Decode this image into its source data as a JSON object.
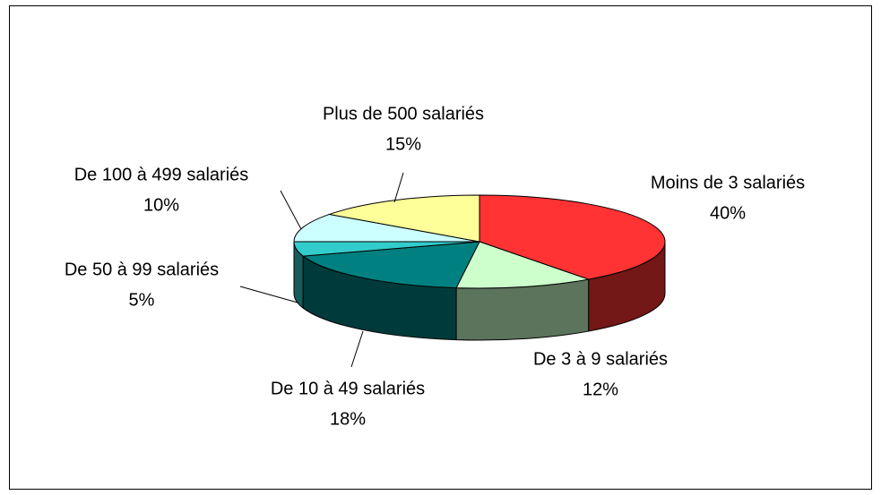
{
  "chart_data": {
    "type": "pie",
    "categories": [
      "Moins de 3 salariés",
      "De 3 à 9 salariés",
      "De 10 à 49 salariés",
      "De 50 à 99 salariés",
      "De 100 à 499 salariés",
      "Plus de 500 salariés"
    ],
    "values": [
      40,
      12,
      18,
      5,
      10,
      15
    ],
    "value_labels": [
      "40%",
      "12%",
      "18%",
      "5%",
      "10%",
      "15%"
    ],
    "colors": [
      "#ff3333",
      "#ccffcc",
      "#008080",
      "#33cccc",
      "#ccffff",
      "#ffff99"
    ]
  }
}
